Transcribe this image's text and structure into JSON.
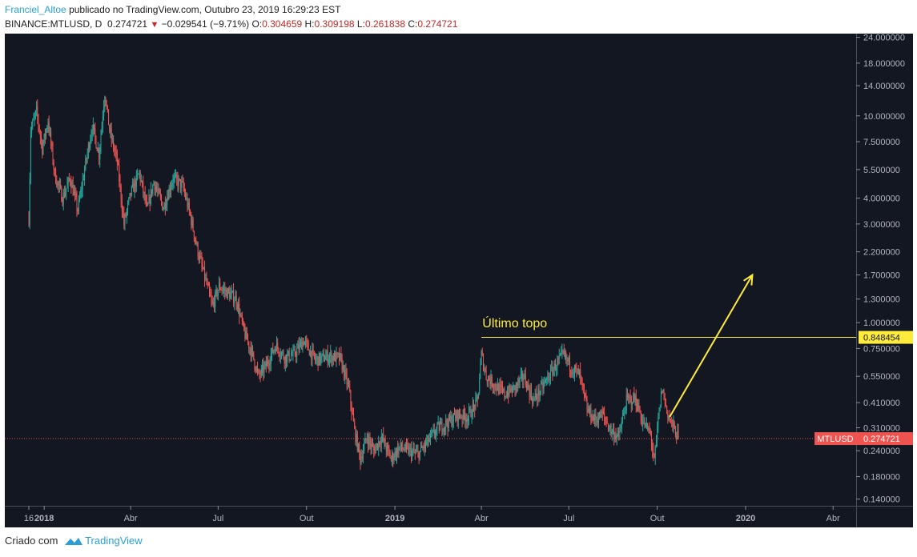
{
  "header": {
    "author": "Franciel_Altoe",
    "published_text": "publicado no TradingView.com, Outubro 23, 2019 16:29:23 EST",
    "symbol": "BINANCE:MTLUSD, D",
    "last": "0.274721",
    "change": "−0.029541 (−9.71%)",
    "o_label": "O:",
    "o_value": "0.304659",
    "h_label": "H:",
    "h_value": "0.309198",
    "l_label": "L:",
    "l_value": "0.261838",
    "c_label": "C:",
    "c_value": "0.274721"
  },
  "footer": {
    "prefix": "Criado com",
    "brand": "TradingView",
    "logo_icon": "tradingview-logo-icon"
  },
  "colors": {
    "background": "#131722",
    "up": "#26a69a",
    "down": "#ef5350",
    "annotation": "#ffeb3b",
    "price_line": "#ef5350"
  },
  "chart_data": {
    "type": "candlestick",
    "symbol": "MTLUSD",
    "exchange": "BINANCE",
    "interval": "D",
    "y_scale": "log",
    "ylim": [
      0.13,
      25
    ],
    "y_ticks": [
      {
        "v": 24,
        "label": "24.000000"
      },
      {
        "v": 18,
        "label": "18.000000"
      },
      {
        "v": 14,
        "label": "14.000000"
      },
      {
        "v": 10,
        "label": "10.000000"
      },
      {
        "v": 7.5,
        "label": "7.500000"
      },
      {
        "v": 5.5,
        "label": "5.500000"
      },
      {
        "v": 4,
        "label": "4.000000"
      },
      {
        "v": 3,
        "label": "3.000000"
      },
      {
        "v": 2.2,
        "label": "2.200000"
      },
      {
        "v": 1.7,
        "label": "1.700000"
      },
      {
        "v": 1.3,
        "label": "1.300000"
      },
      {
        "v": 1,
        "label": "1.000000"
      },
      {
        "v": 0.75,
        "label": "0.750000"
      },
      {
        "v": 0.55,
        "label": "0.550000"
      },
      {
        "v": 0.41,
        "label": "0.410000"
      },
      {
        "v": 0.31,
        "label": "0.310000"
      },
      {
        "v": 0.24,
        "label": "0.240000"
      },
      {
        "v": 0.18,
        "label": "0.180000"
      },
      {
        "v": 0.14,
        "label": "0.140000"
      }
    ],
    "x_ticks": [
      {
        "date": "2017-12-16",
        "label": "16",
        "bold": false
      },
      {
        "date": "2018-01-01",
        "label": "2018",
        "bold": true
      },
      {
        "date": "2018-04-01",
        "label": "Abr",
        "bold": false
      },
      {
        "date": "2018-07-01",
        "label": "Jul",
        "bold": false
      },
      {
        "date": "2018-10-01",
        "label": "Out",
        "bold": false
      },
      {
        "date": "2019-01-01",
        "label": "2019",
        "bold": true
      },
      {
        "date": "2019-04-01",
        "label": "Abr",
        "bold": false
      },
      {
        "date": "2019-07-01",
        "label": "Jul",
        "bold": false
      },
      {
        "date": "2019-10-01",
        "label": "Out",
        "bold": false
      },
      {
        "date": "2020-01-01",
        "label": "2020",
        "bold": true
      },
      {
        "date": "2020-04-01",
        "label": "Abr",
        "bold": false
      }
    ],
    "xlim": [
      "2017-11-21",
      "2020-04-25"
    ],
    "price_path": [
      [
        "2017-12-16",
        3.2
      ],
      [
        "2017-12-18",
        8.5
      ],
      [
        "2017-12-24",
        10.5
      ],
      [
        "2017-12-30",
        7.0
      ],
      [
        "2018-01-05",
        9.5
      ],
      [
        "2018-01-12",
        5.2
      ],
      [
        "2018-01-20",
        4.0
      ],
      [
        "2018-01-28",
        5.0
      ],
      [
        "2018-02-05",
        3.5
      ],
      [
        "2018-02-12",
        5.5
      ],
      [
        "2018-02-20",
        9.0
      ],
      [
        "2018-02-27",
        6.5
      ],
      [
        "2018-03-05",
        13.0
      ],
      [
        "2018-03-10",
        8.5
      ],
      [
        "2018-03-18",
        6.0
      ],
      [
        "2018-03-25",
        3.0
      ],
      [
        "2018-04-01",
        4.2
      ],
      [
        "2018-04-10",
        5.3
      ],
      [
        "2018-04-18",
        3.5
      ],
      [
        "2018-04-25",
        4.8
      ],
      [
        "2018-05-05",
        3.6
      ],
      [
        "2018-05-15",
        5.0
      ],
      [
        "2018-05-25",
        4.6
      ],
      [
        "2018-06-02",
        3.3
      ],
      [
        "2018-06-10",
        2.2
      ],
      [
        "2018-06-18",
        1.6
      ],
      [
        "2018-06-25",
        1.2
      ],
      [
        "2018-07-02",
        1.5
      ],
      [
        "2018-07-10",
        1.4
      ],
      [
        "2018-07-20",
        1.3
      ],
      [
        "2018-07-28",
        0.9
      ],
      [
        "2018-08-05",
        0.72
      ],
      [
        "2018-08-12",
        0.55
      ],
      [
        "2018-08-20",
        0.62
      ],
      [
        "2018-08-30",
        0.78
      ],
      [
        "2018-09-08",
        0.68
      ],
      [
        "2018-09-18",
        0.7
      ],
      [
        "2018-09-28",
        0.82
      ],
      [
        "2018-10-10",
        0.66
      ],
      [
        "2018-10-25",
        0.69
      ],
      [
        "2018-11-05",
        0.67
      ],
      [
        "2018-11-14",
        0.48
      ],
      [
        "2018-11-20",
        0.3
      ],
      [
        "2018-11-26",
        0.22
      ],
      [
        "2018-12-03",
        0.28
      ],
      [
        "2018-12-10",
        0.24
      ],
      [
        "2018-12-18",
        0.28
      ],
      [
        "2018-12-28",
        0.22
      ],
      [
        "2019-01-06",
        0.25
      ],
      [
        "2019-01-15",
        0.24
      ],
      [
        "2019-01-25",
        0.23
      ],
      [
        "2019-02-05",
        0.27
      ],
      [
        "2019-02-15",
        0.31
      ],
      [
        "2019-02-25",
        0.33
      ],
      [
        "2019-03-08",
        0.36
      ],
      [
        "2019-03-18",
        0.35
      ],
      [
        "2019-03-28",
        0.42
      ],
      [
        "2019-04-01",
        0.7
      ],
      [
        "2019-04-06",
        0.55
      ],
      [
        "2019-04-15",
        0.5
      ],
      [
        "2019-04-25",
        0.45
      ],
      [
        "2019-05-05",
        0.48
      ],
      [
        "2019-05-15",
        0.55
      ],
      [
        "2019-05-25",
        0.42
      ],
      [
        "2019-06-05",
        0.5
      ],
      [
        "2019-06-15",
        0.6
      ],
      [
        "2019-06-25",
        0.7
      ],
      [
        "2019-07-05",
        0.6
      ],
      [
        "2019-07-12",
        0.56
      ],
      [
        "2019-07-20",
        0.38
      ],
      [
        "2019-07-28",
        0.34
      ],
      [
        "2019-08-05",
        0.36
      ],
      [
        "2019-08-14",
        0.3
      ],
      [
        "2019-08-22",
        0.28
      ],
      [
        "2019-08-30",
        0.42
      ],
      [
        "2019-09-08",
        0.43
      ],
      [
        "2019-09-16",
        0.33
      ],
      [
        "2019-09-24",
        0.29
      ],
      [
        "2019-09-28",
        0.21
      ],
      [
        "2019-10-02",
        0.34
      ],
      [
        "2019-10-06",
        0.48
      ],
      [
        "2019-10-12",
        0.36
      ],
      [
        "2019-10-18",
        0.31
      ],
      [
        "2019-10-23",
        0.275
      ]
    ],
    "last_price": 0.274721,
    "last_price_label": "0.274721",
    "last_price_tag": "MTLUSD",
    "horizontal_line": {
      "value": 0.848454,
      "label": "0.848454",
      "from": "2019-04-01"
    },
    "annotations": [
      {
        "text": "Último topo",
        "date": "2019-04-02",
        "value": 0.95
      }
    ],
    "arrow": {
      "from": [
        "2019-10-14",
        0.35
      ],
      "to": [
        "2020-01-08",
        1.7
      ]
    }
  }
}
